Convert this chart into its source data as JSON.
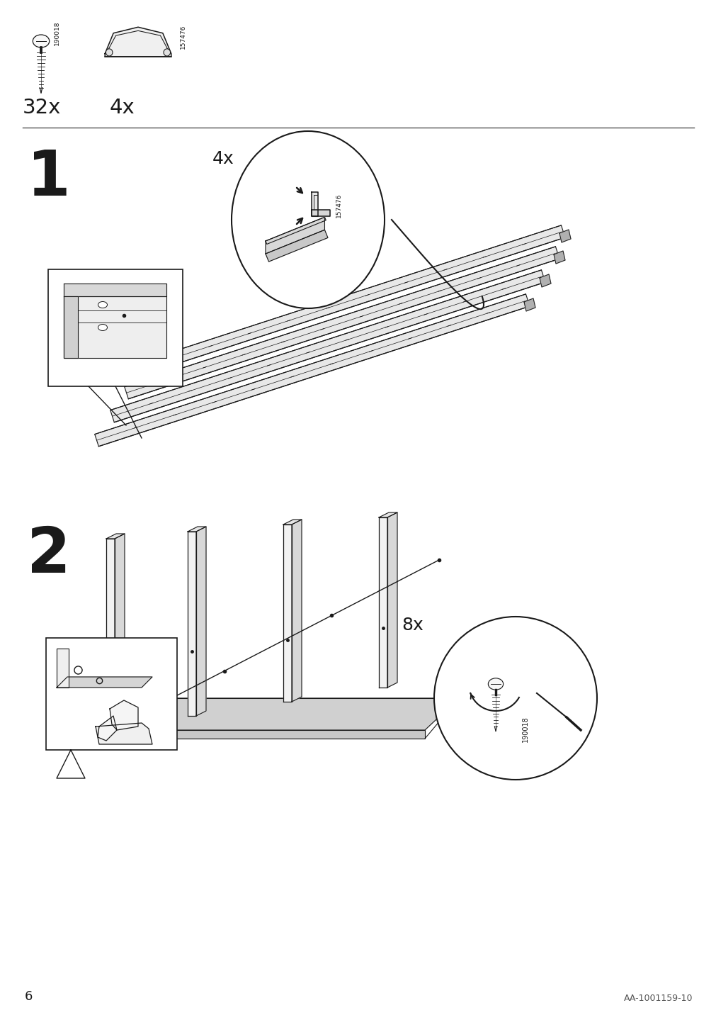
{
  "page_number": "6",
  "doc_number": "AA-1001159-10",
  "bg": "#ffffff",
  "lc": "#1a1a1a",
  "gray1": "#e8e8e8",
  "gray2": "#d0d0d0",
  "gray3": "#b8b8b8",
  "part1_id": "190018",
  "part1_qty": "32x",
  "part2_id": "157476",
  "part2_qty": "4x",
  "step1_label": "1",
  "step1_qty": "4x",
  "step1_part_id": "157476",
  "step2_label": "2",
  "step2_screw_qty": "8x",
  "step2_screw_id": "190018"
}
